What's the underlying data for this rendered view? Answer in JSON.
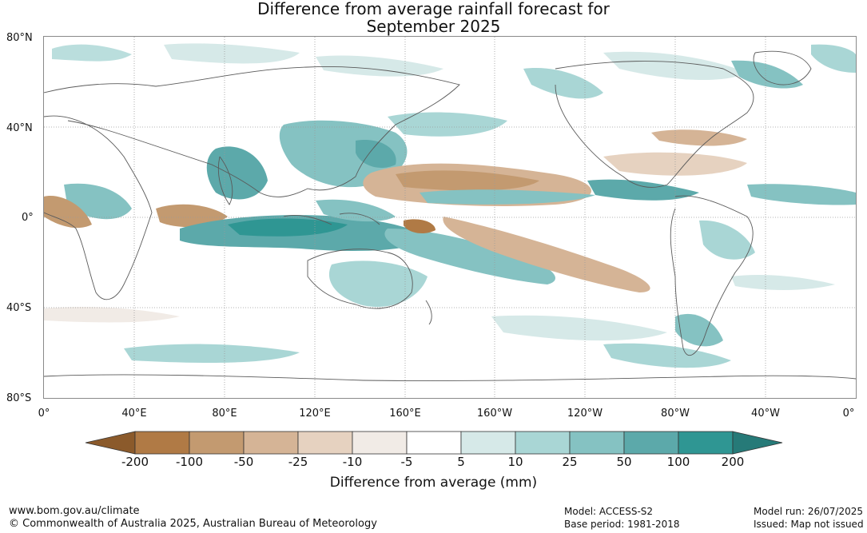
{
  "title": {
    "line1": "Difference from average rainfall forecast for",
    "line2": "September 2025"
  },
  "axes": {
    "lat_labels": [
      "80°N",
      "40°N",
      "0°",
      "40°S",
      "80°S"
    ],
    "lon_labels": [
      "0°",
      "40°E",
      "80°E",
      "120°E",
      "160°E",
      "160°W",
      "120°W",
      "80°W",
      "40°W",
      "0°"
    ]
  },
  "colorbar": {
    "labels": [
      "-200",
      "-100",
      "-50",
      "-25",
      "-10",
      "-5",
      "5",
      "10",
      "25",
      "50",
      "100",
      "200"
    ],
    "colors": [
      "#8b5a2b",
      "#b07a45",
      "#c39a70",
      "#d5b496",
      "#e6d2c0",
      "#f1ebe6",
      "#ffffff",
      "#d6e9e8",
      "#a9d6d5",
      "#85c2c2",
      "#5ca9aa",
      "#2f9693",
      "#267a78"
    ],
    "caption": "Difference from average (mm)"
  },
  "footer": {
    "url": "www.bom.gov.au/climate",
    "copyright": "© Commonwealth of Australia 2025, Australian Bureau of Meteorology",
    "model": "Model: ACCESS-S2",
    "base_period": "Base period: 1981-2018",
    "model_run": "Model run: 26/07/2025",
    "issued": "Issued: Map not issued"
  }
}
